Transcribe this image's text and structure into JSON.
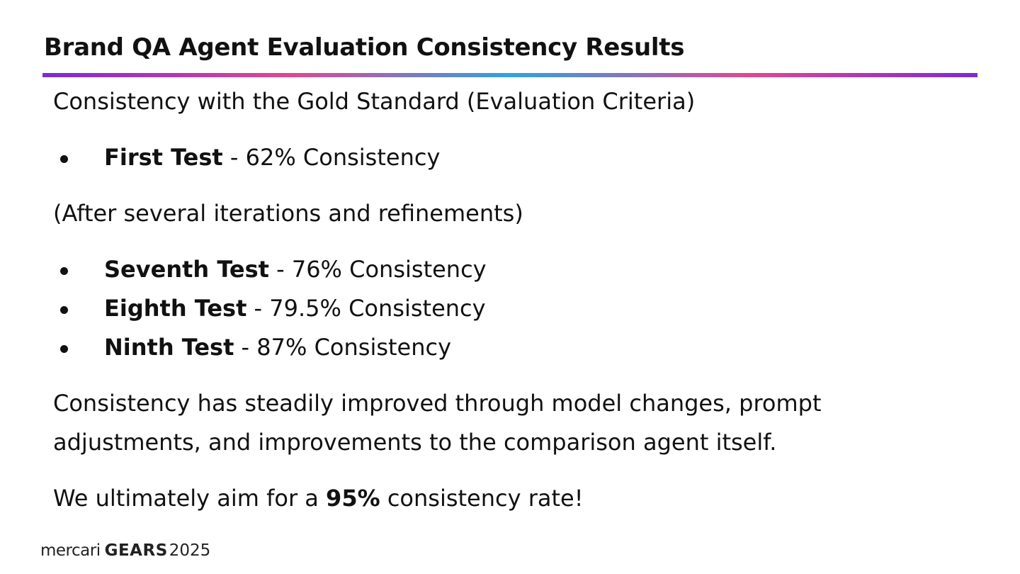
{
  "slide": {
    "title": "Brand QA Agent Evaluation Consistency Results",
    "intro": "Consistency with the Gold Standard (Evaluation Criteria)",
    "first_list": [
      {
        "label": "First Test",
        "text": " - 62% Consistency"
      }
    ],
    "note": "(After several iterations and refinements)",
    "second_list": [
      {
        "label": "Seventh Test",
        "text": " - 76% Consistency"
      },
      {
        "label": "Eighth Test",
        "text": " - 79.5% Consistency"
      },
      {
        "label": "Ninth Test",
        "text": " - 87% Consistency"
      }
    ],
    "summary": "Consistency has steadily improved through model changes, prompt adjustments, and improvements to the comparison agent itself.",
    "goal_prefix": "We ultimately aim for a ",
    "goal_value": "95%",
    "goal_suffix": " consistency rate!"
  },
  "footer": {
    "brand": "mercari",
    "event": "GEARS",
    "year": "2025"
  },
  "colors": {
    "gradient": [
      "#7a2bd6",
      "#e0478f",
      "#2fa3e0",
      "#e0478f",
      "#7a2bd6"
    ],
    "text": "#111111"
  }
}
